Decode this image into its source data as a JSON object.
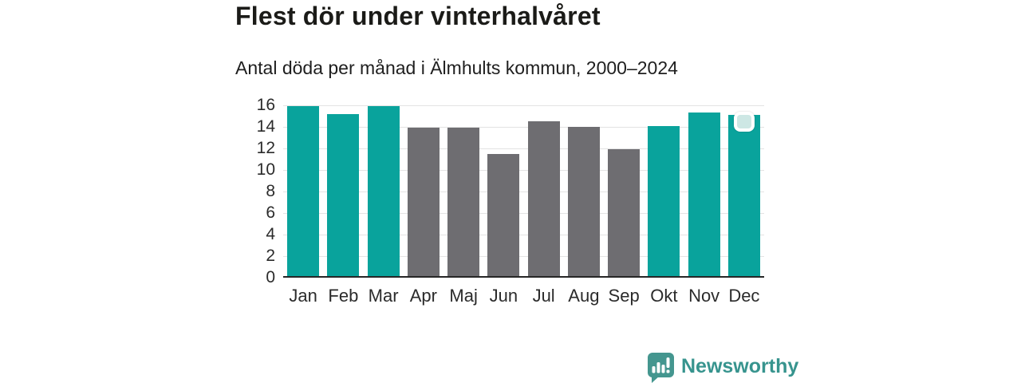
{
  "header": {
    "title": "Flest dör under vinterhalvåret",
    "subtitle": "Antal döda per månad i Älmhults kommun, 2000–2024"
  },
  "chart_data": {
    "type": "bar",
    "title": "Flest dör under vinterhalvåret",
    "subtitle": "Antal döda per månad i Älmhults kommun, 2000–2024",
    "categories": [
      "Jan",
      "Feb",
      "Mar",
      "Apr",
      "Maj",
      "Jun",
      "Jul",
      "Aug",
      "Sep",
      "Okt",
      "Nov",
      "Dec"
    ],
    "values": [
      15.9,
      15.2,
      15.9,
      13.9,
      13.9,
      11.5,
      14.5,
      14.0,
      11.9,
      14.1,
      15.3,
      15.1
    ],
    "highlighted": [
      true,
      true,
      true,
      false,
      false,
      false,
      false,
      false,
      false,
      true,
      true,
      true
    ],
    "xlabel": "",
    "ylabel": "",
    "ylim": [
      0,
      16
    ],
    "ytick_step": 2,
    "grid": "horizontal",
    "legend": "none",
    "colors": {
      "highlight": "#09a39c",
      "muted": "#6e6d71"
    }
  },
  "branding": {
    "logo_text": "Newsworthy",
    "logo_color": "#37948e",
    "icon_color": "#44968f"
  }
}
